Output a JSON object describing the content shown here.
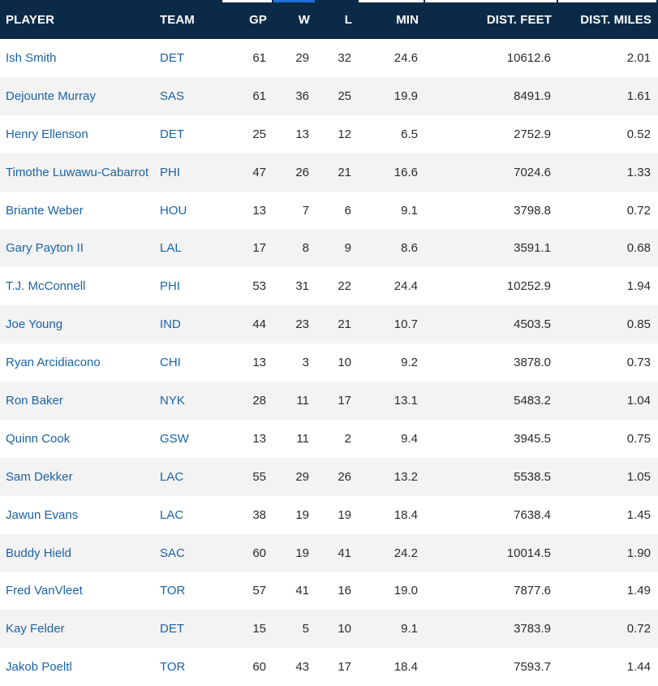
{
  "table": {
    "columns": [
      {
        "key": "player",
        "label": "PLAYER"
      },
      {
        "key": "team",
        "label": "TEAM"
      },
      {
        "key": "gp",
        "label": "GP"
      },
      {
        "key": "w",
        "label": "W"
      },
      {
        "key": "l",
        "label": "L"
      },
      {
        "key": "min",
        "label": "MIN"
      },
      {
        "key": "dist_feet",
        "label": "DIST. FEET"
      },
      {
        "key": "dist_miles",
        "label": "DIST. MILES"
      }
    ],
    "sorted_column": "w",
    "colors": {
      "header_bg": "#0b2a47",
      "header_text": "#ffffff",
      "link": "#1b63a6",
      "active_indicator": "#1d6fd6",
      "alt_row_bg": "#f3f3f3"
    },
    "rows": [
      {
        "player": "Ish Smith",
        "team": "DET",
        "gp": "61",
        "w": "29",
        "l": "32",
        "min": "24.6",
        "dist_feet": "10612.6",
        "dist_miles": "2.01"
      },
      {
        "player": "Dejounte Murray",
        "team": "SAS",
        "gp": "61",
        "w": "36",
        "l": "25",
        "min": "19.9",
        "dist_feet": "8491.9",
        "dist_miles": "1.61"
      },
      {
        "player": "Henry Ellenson",
        "team": "DET",
        "gp": "25",
        "w": "13",
        "l": "12",
        "min": "6.5",
        "dist_feet": "2752.9",
        "dist_miles": "0.52"
      },
      {
        "player": "Timothe Luwawu-Cabarrot",
        "team": "PHI",
        "gp": "47",
        "w": "26",
        "l": "21",
        "min": "16.6",
        "dist_feet": "7024.6",
        "dist_miles": "1.33"
      },
      {
        "player": "Briante Weber",
        "team": "HOU",
        "gp": "13",
        "w": "7",
        "l": "6",
        "min": "9.1",
        "dist_feet": "3798.8",
        "dist_miles": "0.72"
      },
      {
        "player": "Gary Payton II",
        "team": "LAL",
        "gp": "17",
        "w": "8",
        "l": "9",
        "min": "8.6",
        "dist_feet": "3591.1",
        "dist_miles": "0.68"
      },
      {
        "player": "T.J. McConnell",
        "team": "PHI",
        "gp": "53",
        "w": "31",
        "l": "22",
        "min": "24.4",
        "dist_feet": "10252.9",
        "dist_miles": "1.94"
      },
      {
        "player": "Joe Young",
        "team": "IND",
        "gp": "44",
        "w": "23",
        "l": "21",
        "min": "10.7",
        "dist_feet": "4503.5",
        "dist_miles": "0.85"
      },
      {
        "player": "Ryan Arcidiacono",
        "team": "CHI",
        "gp": "13",
        "w": "3",
        "l": "10",
        "min": "9.2",
        "dist_feet": "3878.0",
        "dist_miles": "0.73"
      },
      {
        "player": "Ron Baker",
        "team": "NYK",
        "gp": "28",
        "w": "11",
        "l": "17",
        "min": "13.1",
        "dist_feet": "5483.2",
        "dist_miles": "1.04"
      },
      {
        "player": "Quinn Cook",
        "team": "GSW",
        "gp": "13",
        "w": "11",
        "l": "2",
        "min": "9.4",
        "dist_feet": "3945.5",
        "dist_miles": "0.75"
      },
      {
        "player": "Sam Dekker",
        "team": "LAC",
        "gp": "55",
        "w": "29",
        "l": "26",
        "min": "13.2",
        "dist_feet": "5538.5",
        "dist_miles": "1.05"
      },
      {
        "player": "Jawun Evans",
        "team": "LAC",
        "gp": "38",
        "w": "19",
        "l": "19",
        "min": "18.4",
        "dist_feet": "7638.4",
        "dist_miles": "1.45"
      },
      {
        "player": "Buddy Hield",
        "team": "SAC",
        "gp": "60",
        "w": "19",
        "l": "41",
        "min": "24.2",
        "dist_feet": "10014.5",
        "dist_miles": "1.90"
      },
      {
        "player": "Fred VanVleet",
        "team": "TOR",
        "gp": "57",
        "w": "41",
        "l": "16",
        "min": "19.0",
        "dist_feet": "7877.6",
        "dist_miles": "1.49"
      },
      {
        "player": "Kay Felder",
        "team": "DET",
        "gp": "15",
        "w": "5",
        "l": "10",
        "min": "9.1",
        "dist_feet": "3783.9",
        "dist_miles": "0.72"
      },
      {
        "player": "Jakob Poeltl",
        "team": "TOR",
        "gp": "60",
        "w": "43",
        "l": "17",
        "min": "18.4",
        "dist_feet": "7593.7",
        "dist_miles": "1.44"
      }
    ]
  }
}
